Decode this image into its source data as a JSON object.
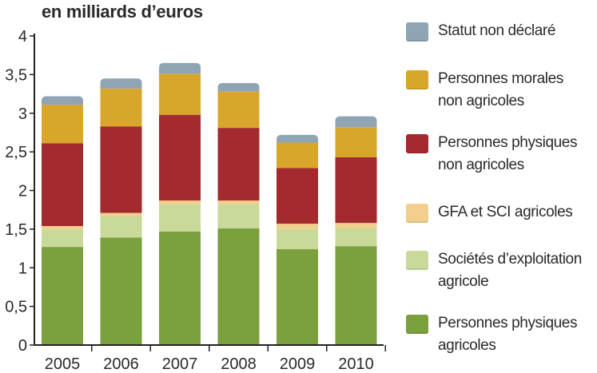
{
  "chart_data": {
    "type": "bar",
    "stacked": true,
    "unit_label": "en milliards d’euros",
    "categories": [
      "2005",
      "2006",
      "2007",
      "2008",
      "2009",
      "2010"
    ],
    "ylim": [
      0,
      4
    ],
    "yticks": [
      "0",
      "0,5",
      "1",
      "1,5",
      "2",
      "2,5",
      "3",
      "3,5",
      "4"
    ],
    "ytick_values": [
      0,
      0.5,
      1,
      1.5,
      2,
      2.5,
      3,
      3.5,
      4
    ],
    "grid": false,
    "legend_position": "right",
    "series": [
      {
        "name": "Personnes physiques\nagricoles",
        "color": "#7ba03e",
        "values": [
          1.27,
          1.39,
          1.47,
          1.51,
          1.24,
          1.28
        ]
      },
      {
        "name": "Sociétés d’exploitation\nagricole",
        "color": "#c9d99a",
        "values": [
          0.23,
          0.28,
          0.35,
          0.31,
          0.26,
          0.23
        ]
      },
      {
        "name": "GFA et SCI agricoles",
        "color": "#f2cf8c",
        "values": [
          0.04,
          0.04,
          0.05,
          0.05,
          0.07,
          0.07
        ]
      },
      {
        "name": "Personnes physiques\nnon agricoles",
        "color": "#a32a2e",
        "values": [
          1.07,
          1.12,
          1.11,
          0.94,
          0.72,
          0.85
        ]
      },
      {
        "name": "Personnes morales\nnon agricoles",
        "color": "#d9a62c",
        "values": [
          0.5,
          0.49,
          0.53,
          0.47,
          0.33,
          0.39
        ]
      },
      {
        "name": "Statut non déclaré",
        "color": "#8fa5b3",
        "values": [
          0.11,
          0.13,
          0.14,
          0.11,
          0.1,
          0.14
        ]
      }
    ]
  }
}
